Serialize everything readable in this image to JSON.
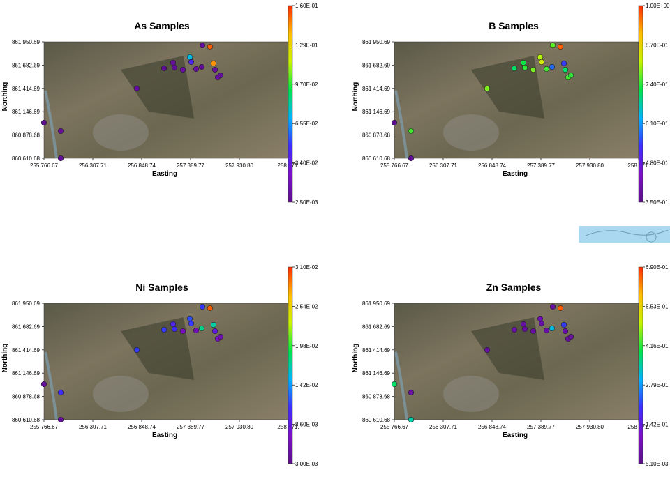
{
  "colors": {
    "stops": [
      "#5b0f8a",
      "#7b0fc8",
      "#3c2cff",
      "#00b4ff",
      "#00e64a",
      "#c9f400",
      "#ffbd00",
      "#ff2a00"
    ],
    "water_swatch": "#a9d8f0"
  },
  "panels": [
    {
      "id": "as",
      "title": "As Samples",
      "xlabel": "Easting",
      "ylabel": "Northing",
      "xticks": [
        "255 766.67",
        "256 307.71",
        "256 848.74",
        "257 389.77",
        "257 930.80",
        "258 471."
      ],
      "yticks": [
        "861 950.69",
        "861 682.69",
        "861 414.69",
        "861 146.69",
        "860 878.68",
        "860 610.68"
      ],
      "colorbar": [
        "1.60E-01",
        "1.29E-01",
        "9.70E-02",
        "6.55E-02",
        "3.40E-02",
        "2.50E-03"
      ],
      "point_levels": [
        0.02,
        0.05,
        0.03,
        0.04,
        0.02,
        0.05,
        0.03,
        0.45,
        0.25,
        0.05,
        0.06,
        0.04,
        0.95,
        0.9,
        0.05,
        0.05,
        0.03,
        0.04
      ]
    },
    {
      "id": "b",
      "title": "B Samples",
      "xlabel": "Easting",
      "ylabel": "Northing",
      "xticks": [
        "255 766.67",
        "256 307.71",
        "256 848.74",
        "257 389.77",
        "257 930.80",
        "258 471."
      ],
      "yticks": [
        "861 950.69",
        "861 682.69",
        "861 414.69",
        "861 146.69",
        "860 878.68",
        "860 610.68"
      ],
      "colorbar": [
        "1.00E+00",
        "8.70E-01",
        "7.40E-01",
        "6.10E-01",
        "4.80E-01",
        "3.50E-01"
      ],
      "point_levels": [
        0.02,
        0.62,
        0.03,
        0.66,
        0.55,
        0.58,
        0.6,
        0.7,
        0.74,
        0.66,
        0.62,
        0.35,
        0.95,
        0.3,
        0.55,
        0.62,
        0.6,
        0.64
      ]
    },
    {
      "id": "ni",
      "title": "Ni Samples",
      "xlabel": "Easting",
      "ylabel": "Northing",
      "xticks": [
        "255 766.67",
        "256 307.71",
        "256 848.74",
        "257 389.77",
        "257 930.80",
        "258 471."
      ],
      "yticks": [
        "861 950.69",
        "861 682.69",
        "861 414.69",
        "861 146.69",
        "860 878.68",
        "860 610.68"
      ],
      "colorbar": [
        "3.10E-02",
        "2.54E-02",
        "1.98E-02",
        "1.42E-02",
        "8.60E-03",
        "3.00E-03"
      ],
      "point_levels": [
        0.05,
        0.28,
        0.04,
        0.3,
        0.3,
        0.25,
        0.28,
        0.32,
        0.3,
        0.12,
        0.1,
        0.52,
        0.95,
        0.5,
        0.2,
        0.15,
        0.08,
        0.3
      ]
    },
    {
      "id": "zn",
      "title": "Zn Samples",
      "xlabel": "Easting",
      "ylabel": "Northing",
      "xticks": [
        "255 766.67",
        "256 307.71",
        "256 848.74",
        "257 389.77",
        "257 930.80",
        "258 471."
      ],
      "yticks": [
        "861 950.69",
        "861 682.69",
        "861 414.69",
        "861 146.69",
        "860 878.68",
        "860 610.68"
      ],
      "colorbar": [
        "6.90E-01",
        "5.53E-01",
        "4.16E-01",
        "2.79E-01",
        "1.42E-01",
        "5.10E-03"
      ],
      "point_levels": [
        0.55,
        0.06,
        0.5,
        0.05,
        0.06,
        0.05,
        0.06,
        0.08,
        0.06,
        0.05,
        0.06,
        0.45,
        0.95,
        0.3,
        0.06,
        0.05,
        0.05,
        0.05
      ]
    }
  ]
}
